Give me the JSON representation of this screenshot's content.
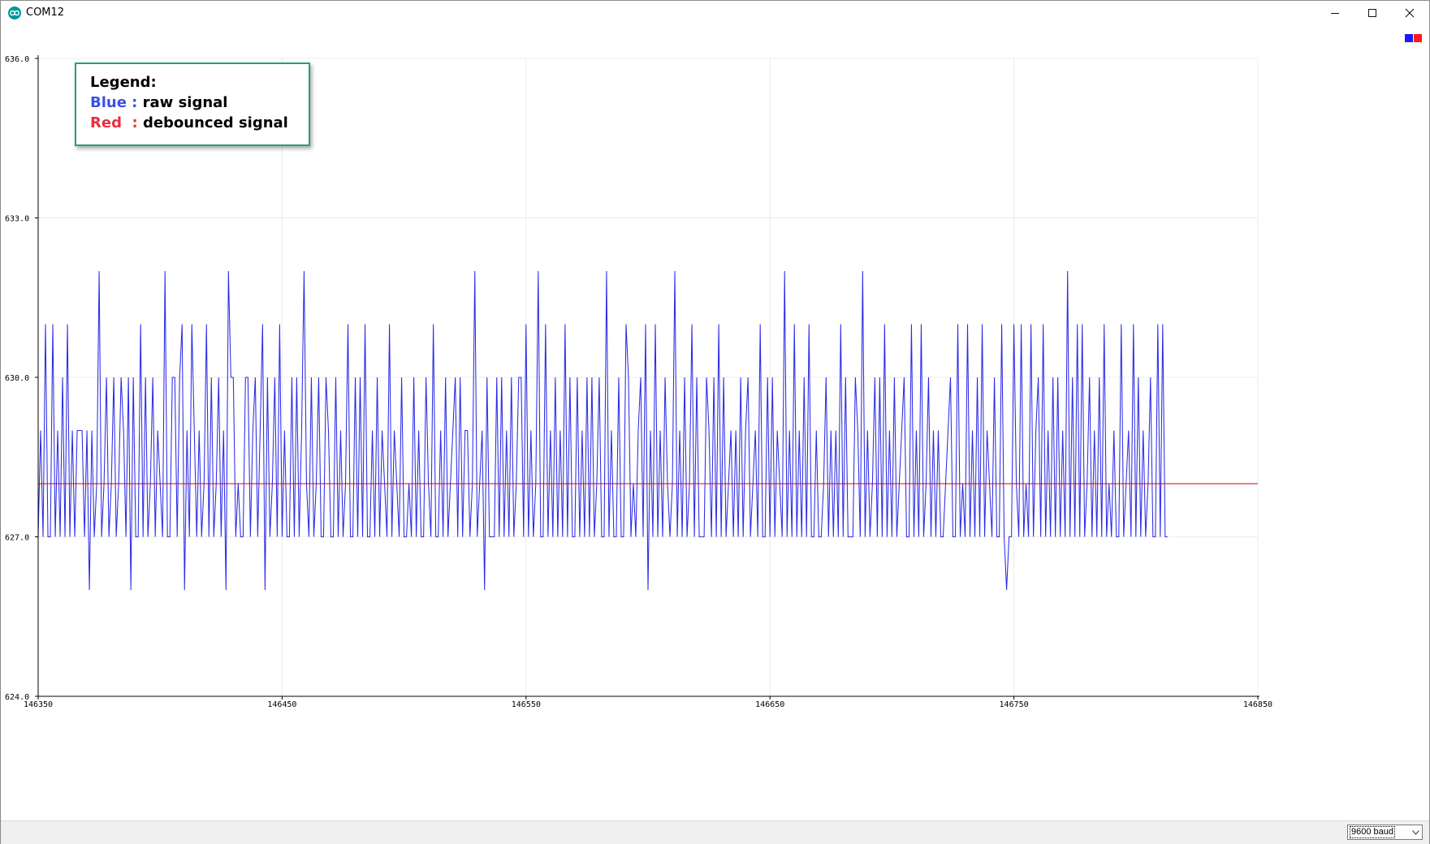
{
  "window": {
    "title": "COM12",
    "minimize_glyph": "—",
    "maximize_glyph": "☐",
    "close_glyph": "✕"
  },
  "legend_box": {
    "heading": "Legend:",
    "entries": [
      {
        "key": "Blue :",
        "text": " raw signal",
        "color": "#3a4fe8"
      },
      {
        "key": "Red  :",
        "text": " debounced signal",
        "color": "#e8303a"
      }
    ]
  },
  "colors": {
    "raw_series": "#2b2be6",
    "debounced_series": "#e00000",
    "grid": "#ececec",
    "axis": "#000000",
    "legend_border": "#22a07e"
  },
  "statusbar": {
    "baud": "9600 baud"
  },
  "chart_data": {
    "type": "line",
    "title": "",
    "xlabel": "",
    "ylabel": "",
    "xlim": [
      146350,
      146850
    ],
    "ylim": [
      624.0,
      636.0
    ],
    "x_ticks": [
      146350,
      146450,
      146550,
      146650,
      146750,
      146850
    ],
    "x_tick_labels": [
      "146350",
      "146450",
      "146550",
      "146650",
      "146750",
      "146850"
    ],
    "y_ticks": [
      624.0,
      627.0,
      630.0,
      633.0,
      636.0
    ],
    "y_tick_labels": [
      "624.0",
      "627.0",
      "630.0",
      "633.0",
      "636.0"
    ],
    "grid": true,
    "legend_position": "top-right",
    "series": [
      {
        "color": "#2b2be6",
        "x_start": 146350,
        "x_step": 1,
        "values": [
          627,
          629,
          627,
          631,
          627,
          627,
          631,
          627,
          629,
          627,
          630,
          627,
          631,
          627,
          629,
          627,
          629,
          629,
          629,
          627,
          629,
          626,
          629,
          627,
          628,
          632,
          627,
          628,
          630,
          627,
          628,
          630,
          627,
          628,
          630,
          629,
          627,
          630,
          626,
          630,
          627,
          627,
          631,
          627,
          630,
          627,
          628,
          630,
          627,
          629,
          628,
          627,
          632,
          627,
          627,
          630,
          630,
          627,
          630,
          631,
          626,
          629,
          627,
          631,
          629,
          627,
          629,
          627,
          628,
          631,
          627,
          630,
          627,
          628,
          630,
          627,
          629,
          626,
          632,
          630,
          630,
          627,
          628,
          627,
          627,
          630,
          630,
          627,
          629,
          630,
          627,
          629,
          631,
          626,
          630,
          627,
          628,
          630,
          627,
          631,
          627,
          629,
          627,
          627,
          630,
          627,
          630,
          627,
          629,
          632,
          628,
          627,
          630,
          627,
          628,
          630,
          627,
          627,
          630,
          629,
          627,
          627,
          630,
          627,
          629,
          627,
          628,
          631,
          627,
          627,
          630,
          627,
          630,
          627,
          631,
          627,
          627,
          629,
          627,
          630,
          627,
          629,
          628,
          627,
          631,
          627,
          629,
          628,
          627,
          630,
          627,
          627,
          628,
          627,
          630,
          627,
          629,
          627,
          627,
          630,
          628,
          627,
          631,
          627,
          627,
          629,
          627,
          630,
          627,
          628,
          629,
          630,
          627,
          630,
          627,
          629,
          629,
          627,
          628,
          632,
          627,
          628,
          629,
          626,
          630,
          627,
          627,
          627,
          630,
          627,
          630,
          627,
          629,
          627,
          630,
          627,
          628,
          630,
          630,
          627,
          631,
          627,
          629,
          627,
          628,
          632,
          627,
          627,
          631,
          627,
          629,
          627,
          630,
          627,
          629,
          627,
          631,
          627,
          630,
          627,
          627,
          630,
          627,
          629,
          627,
          630,
          627,
          630,
          627,
          628,
          630,
          627,
          627,
          632,
          627,
          629,
          627,
          627,
          630,
          627,
          627,
          631,
          630,
          627,
          628,
          627,
          629,
          630,
          627,
          631,
          626,
          629,
          627,
          631,
          627,
          629,
          627,
          630,
          628,
          627,
          628,
          632,
          627,
          629,
          627,
          630,
          627,
          628,
          631,
          627,
          630,
          627,
          627,
          627,
          630,
          629,
          627,
          630,
          627,
          631,
          627,
          630,
          627,
          628,
          629,
          627,
          629,
          627,
          630,
          627,
          629,
          630,
          627,
          628,
          629,
          627,
          631,
          627,
          627,
          630,
          627,
          630,
          627,
          629,
          628,
          627,
          632,
          627,
          629,
          627,
          631,
          627,
          629,
          627,
          630,
          627,
          631,
          627,
          627,
          629,
          627,
          627,
          628,
          630,
          627,
          629,
          627,
          629,
          627,
          631,
          627,
          630,
          627,
          627,
          627,
          630,
          629,
          627,
          632,
          627,
          629,
          627,
          628,
          630,
          627,
          630,
          627,
          631,
          627,
          629,
          627,
          630,
          627,
          628,
          629,
          630,
          627,
          627,
          631,
          627,
          629,
          627,
          631,
          627,
          628,
          630,
          627,
          629,
          627,
          629,
          627,
          627,
          628,
          629,
          630,
          627,
          627,
          631,
          627,
          628,
          627,
          631,
          627,
          629,
          627,
          630,
          627,
          631,
          627,
          629,
          628,
          627,
          630,
          627,
          627,
          631,
          627,
          626,
          627,
          627,
          631,
          628,
          627,
          631,
          627,
          628,
          627,
          631,
          627,
          629,
          630,
          627,
          631,
          627,
          629,
          627,
          630,
          627,
          630,
          627,
          629,
          627,
          632,
          627,
          630,
          627,
          631,
          627,
          631,
          627,
          628,
          630,
          627,
          629,
          627,
          630,
          627,
          631,
          627,
          628,
          627,
          629,
          627,
          627,
          631,
          627,
          628,
          629,
          627,
          631,
          627,
          630,
          627,
          629,
          627,
          628,
          630,
          627,
          627,
          631,
          627,
          631,
          627,
          627
        ]
      },
      {
        "color": "#e00000",
        "x_start": 146350,
        "x_step": 500,
        "values": [
          628,
          628
        ]
      }
    ]
  }
}
